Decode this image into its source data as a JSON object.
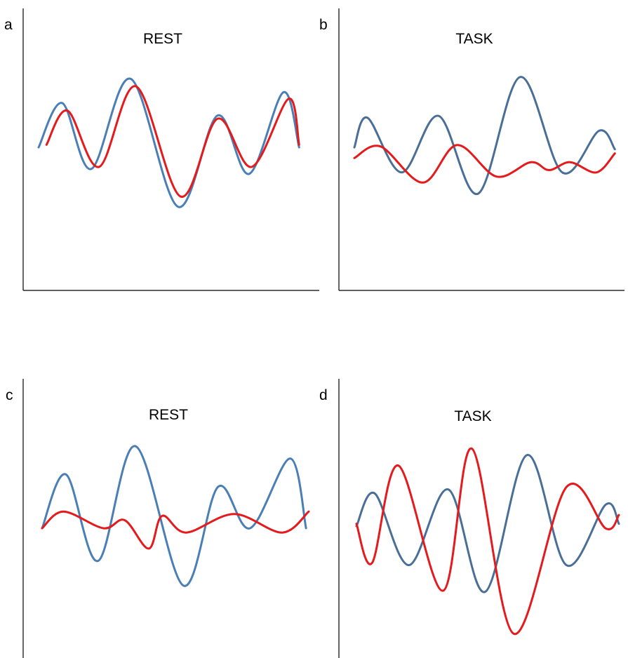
{
  "panels": [
    {
      "letter": "a",
      "title": "REST"
    },
    {
      "letter": "b",
      "title": "TASK"
    },
    {
      "letter": "c",
      "title": "REST"
    },
    {
      "letter": "d",
      "title": "TASK"
    }
  ],
  "chart_data": [
    {
      "type": "line",
      "title": "REST",
      "series": [
        {
          "color": "#4a7fb5",
          "points": [
            [
              0,
              0.18
            ],
            [
              0.09,
              1
            ],
            [
              0.2,
              -0.22
            ],
            [
              0.35,
              1.45
            ],
            [
              0.53,
              -0.92
            ],
            [
              0.68,
              0.77
            ],
            [
              0.8,
              -0.31
            ],
            [
              0.93,
              1.2
            ],
            [
              0.99,
              0.18
            ]
          ]
        },
        {
          "color": "#e41a1c",
          "points": [
            [
              0.03,
              0.23
            ],
            [
              0.11,
              0.86
            ],
            [
              0.23,
              -0.18
            ],
            [
              0.37,
              1.31
            ],
            [
              0.54,
              -0.73
            ],
            [
              0.68,
              0.71
            ],
            [
              0.81,
              -0.18
            ],
            [
              0.95,
              1.08
            ],
            [
              0.99,
              0.23
            ]
          ]
        }
      ]
    },
    {
      "type": "line",
      "title": "TASK",
      "series": [
        {
          "color": "#4a6f96",
          "points": [
            [
              0,
              0.18
            ],
            [
              0.05,
              0.82
            ],
            [
              0.18,
              -0.36
            ],
            [
              0.32,
              0.86
            ],
            [
              0.47,
              -0.82
            ],
            [
              0.63,
              1.7
            ],
            [
              0.79,
              -0.36
            ],
            [
              0.93,
              0.54
            ],
            [
              0.99,
              0.14
            ]
          ]
        },
        {
          "color": "#e41a1c",
          "points": [
            [
              0,
              -0.05
            ],
            [
              0.1,
              0.2
            ],
            [
              0.26,
              -0.58
            ],
            [
              0.39,
              0.23
            ],
            [
              0.54,
              -0.45
            ],
            [
              0.67,
              -0.14
            ],
            [
              0.74,
              -0.31
            ],
            [
              0.82,
              -0.14
            ],
            [
              0.92,
              -0.36
            ],
            [
              0.99,
              0.05
            ]
          ]
        }
      ]
    },
    {
      "type": "line",
      "title": "REST",
      "series": [
        {
          "color": "#4a7fb5",
          "points": [
            [
              0,
              0
            ],
            [
              0.09,
              0.87
            ],
            [
              0.21,
              -0.53
            ],
            [
              0.35,
              1.33
            ],
            [
              0.53,
              -0.93
            ],
            [
              0.66,
              0.67
            ],
            [
              0.78,
              0
            ],
            [
              0.93,
              1.13
            ],
            [
              0.99,
              0
            ]
          ]
        },
        {
          "color": "#e41a1c",
          "points": [
            [
              0,
              0
            ],
            [
              0.08,
              0.27
            ],
            [
              0.23,
              0
            ],
            [
              0.31,
              0.13
            ],
            [
              0.4,
              -0.33
            ],
            [
              0.45,
              0.2
            ],
            [
              0.54,
              -0.07
            ],
            [
              0.72,
              0.23
            ],
            [
              0.9,
              -0.07
            ],
            [
              1,
              0.27
            ]
          ]
        }
      ]
    },
    {
      "type": "line",
      "title": "TASK",
      "series": [
        {
          "color": "#4a6f96",
          "points": [
            [
              0,
              0
            ],
            [
              0.07,
              0.56
            ],
            [
              0.2,
              -0.67
            ],
            [
              0.35,
              0.63
            ],
            [
              0.49,
              -1.13
            ],
            [
              0.65,
              1.22
            ],
            [
              0.8,
              -0.67
            ],
            [
              0.95,
              0.37
            ],
            [
              1,
              0.04
            ]
          ]
        },
        {
          "color": "#e41a1c",
          "points": [
            [
              0,
              0.04
            ],
            [
              0.06,
              -0.63
            ],
            [
              0.16,
              1.04
            ],
            [
              0.33,
              -1.11
            ],
            [
              0.44,
              1.33
            ],
            [
              0.6,
              -1.85
            ],
            [
              0.8,
              0.67
            ],
            [
              0.95,
              -0.04
            ],
            [
              1,
              0.19
            ]
          ]
        }
      ]
    }
  ]
}
